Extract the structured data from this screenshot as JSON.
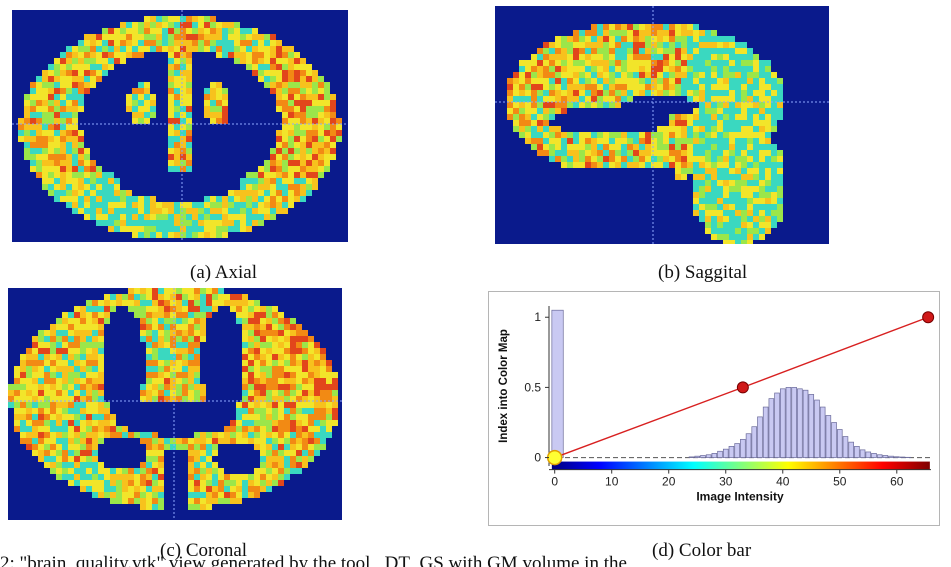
{
  "captions": {
    "a": "(a) Axial",
    "b": "(b) Saggital",
    "c": "(c) Coronal",
    "d": "(d) Color bar"
  },
  "body_text_fragment": "2: \"brain_quality.vtk\" view generated by the tool _DT_GS with GM volume in the",
  "colors": {
    "background": "#0a1a8c",
    "crosshair": "#8ea8ff",
    "tissue_palette": [
      "#3ad8c0",
      "#9be64a",
      "#f2e52a",
      "#f7c21d",
      "#f28a14",
      "#e2461b"
    ]
  },
  "chart_data": {
    "type": "line",
    "xlabel": "Image Intensity",
    "ylabel": "Index into Color Map",
    "x_ticks": [
      0,
      10,
      20,
      30,
      40,
      50,
      60
    ],
    "y_ticks": [
      0,
      0.5,
      1
    ],
    "xlim": [
      -1,
      66
    ],
    "ylim": [
      -0.06,
      1.08
    ],
    "transfer_function": [
      {
        "x": 0,
        "y": 0
      },
      {
        "x": 33,
        "y": 0.5
      },
      {
        "x": 65.5,
        "y": 1
      }
    ],
    "histogram": {
      "bin_centers": [
        0.5,
        24,
        25,
        26,
        27,
        28,
        29,
        30,
        31,
        32,
        33,
        34,
        35,
        36,
        37,
        38,
        39,
        40,
        41,
        42,
        43,
        44,
        45,
        46,
        47,
        48,
        49,
        50,
        51,
        52,
        53,
        54,
        55,
        56,
        57,
        58,
        59,
        60,
        61,
        62
      ],
      "counts": [
        1.05,
        0.005,
        0.01,
        0.015,
        0.02,
        0.03,
        0.045,
        0.06,
        0.08,
        0.1,
        0.13,
        0.17,
        0.22,
        0.29,
        0.36,
        0.42,
        0.46,
        0.49,
        0.5,
        0.5,
        0.49,
        0.48,
        0.45,
        0.41,
        0.36,
        0.3,
        0.25,
        0.2,
        0.15,
        0.11,
        0.08,
        0.055,
        0.04,
        0.03,
        0.02,
        0.015,
        0.01,
        0.006,
        0.004,
        0.002
      ]
    },
    "colormap": [
      "#00007f",
      "#0000ff",
      "#007fff",
      "#00ffff",
      "#7fff7f",
      "#ffff00",
      "#ff7f00",
      "#ff0000",
      "#7f0000"
    ],
    "grid": false,
    "legend": "none"
  }
}
